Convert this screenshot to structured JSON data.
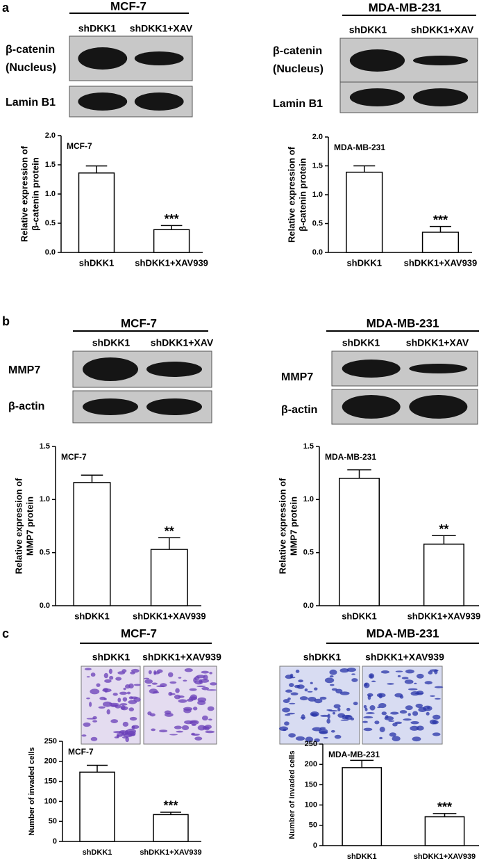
{
  "panels": [
    {
      "label": "a",
      "groups": [
        {
          "cell_line": "MCF-7",
          "lanes": [
            "shDKK1",
            "shDKK1+XAV"
          ],
          "rows": [
            [
              "β-catenin",
              "(Nucleus)"
            ],
            [
              "Lamin B1"
            ]
          ]
        },
        {
          "cell_line": "MDA-MB-231",
          "lanes": [
            "shDKK1",
            "shDKK1+XAV"
          ],
          "rows": [
            [
              "β-catenin",
              "(Nucleus)"
            ],
            [
              "Lamin B1"
            ]
          ]
        }
      ]
    },
    {
      "label": "b",
      "groups": [
        {
          "cell_line": "MCF-7",
          "lanes": [
            "shDKK1",
            "shDKK1+XAV"
          ],
          "rows": [
            [
              "MMP7"
            ],
            [
              "β-actin"
            ]
          ]
        },
        {
          "cell_line": "MDA-MB-231",
          "lanes": [
            "shDKK1",
            "shDKK1+XAV"
          ],
          "rows": [
            [
              "MMP7"
            ],
            [
              "β-actin"
            ]
          ]
        }
      ]
    },
    {
      "label": "c",
      "groups": [
        {
          "cell_line": "MCF-7",
          "lanes": [
            "shDKK1",
            "shDKK1+XAV939"
          ]
        },
        {
          "cell_line": "MDA-MB-231",
          "lanes": [
            "shDKK1",
            "shDKK1+XAV939"
          ]
        }
      ]
    }
  ],
  "chart_data": [
    {
      "type": "bar",
      "title": "MCF-7",
      "ylabel": [
        "Relative expression of",
        "β-catenin protein"
      ],
      "categories": [
        "shDKK1",
        "shDKK1+XAV939"
      ],
      "values": [
        1.36,
        0.39
      ],
      "errors": [
        0.12,
        0.07
      ],
      "annotations": [
        null,
        "***"
      ],
      "color": "#ffffff",
      "ylim": [
        0,
        2
      ],
      "yticks": [
        {
          "value": 0,
          "label": "0.0"
        },
        {
          "value": 0.5,
          "label": "0.5"
        },
        {
          "value": 1,
          "label": "1.0"
        },
        {
          "value": 1.5,
          "label": "1.5"
        },
        {
          "value": 2,
          "label": "2.0"
        }
      ]
    },
    {
      "type": "bar",
      "title": "MDA-MB-231",
      "ylabel": [
        "Relative expression of",
        "β-catenin protein"
      ],
      "categories": [
        "shDKK1",
        "shDKK1+XAV939"
      ],
      "values": [
        1.39,
        0.35
      ],
      "errors": [
        0.11,
        0.1
      ],
      "annotations": [
        null,
        "***"
      ],
      "color": "#ffffff",
      "ylim": [
        0,
        2
      ],
      "yticks": [
        {
          "value": 0,
          "label": "0.0"
        },
        {
          "value": 0.5,
          "label": "0.5"
        },
        {
          "value": 1,
          "label": "1.0"
        },
        {
          "value": 1.5,
          "label": "1.5"
        },
        {
          "value": 2,
          "label": "2.0"
        }
      ]
    },
    {
      "type": "bar",
      "title": "MCF-7",
      "ylabel": [
        "Relative expression of",
        "MMP7 protein"
      ],
      "categories": [
        "shDKK1",
        "shDKK1+XAV939"
      ],
      "values": [
        1.16,
        0.53
      ],
      "errors": [
        0.07,
        0.11
      ],
      "annotations": [
        null,
        "**"
      ],
      "color": "#ffffff",
      "ylim": [
        0,
        1.5
      ],
      "yticks": [
        {
          "value": 0,
          "label": "0.0"
        },
        {
          "value": 0.5,
          "label": "0.5"
        },
        {
          "value": 1,
          "label": "1.0"
        },
        {
          "value": 1.5,
          "label": "1.5"
        }
      ]
    },
    {
      "type": "bar",
      "title": "MDA-MB-231",
      "ylabel": [
        "Relative expression of",
        "MMP7 protein"
      ],
      "categories": [
        "shDKK1",
        "shDKK1+XAV939"
      ],
      "values": [
        1.2,
        0.58
      ],
      "errors": [
        0.08,
        0.08
      ],
      "annotations": [
        null,
        "**"
      ],
      "color": "#ffffff",
      "ylim": [
        0,
        1.5
      ],
      "yticks": [
        {
          "value": 0,
          "label": "0.0"
        },
        {
          "value": 0.5,
          "label": "0.5"
        },
        {
          "value": 1,
          "label": "1.0"
        },
        {
          "value": 1.5,
          "label": "1.5"
        }
      ]
    },
    {
      "type": "bar",
      "title": "MCF-7",
      "ylabel": [
        "Number of invaded cells"
      ],
      "categories": [
        "shDKK1",
        "shDKK1+XAV939"
      ],
      "values": [
        173,
        67
      ],
      "errors": [
        17,
        6
      ],
      "annotations": [
        null,
        "***"
      ],
      "color": "#ffffff",
      "ylim": [
        0,
        250
      ],
      "yticks": [
        0,
        50,
        100,
        150,
        200,
        250
      ]
    },
    {
      "type": "bar",
      "title": "MDA-MB-231",
      "ylabel": [
        "Number of invaded cells"
      ],
      "categories": [
        "shDKK1",
        "shDKK1+XAV939"
      ],
      "values": [
        192,
        71
      ],
      "errors": [
        18,
        8
      ],
      "annotations": [
        null,
        "***"
      ],
      "color": "#ffffff",
      "ylim": [
        0,
        250
      ],
      "yticks": [
        0,
        50,
        100,
        150,
        200,
        250
      ]
    }
  ]
}
